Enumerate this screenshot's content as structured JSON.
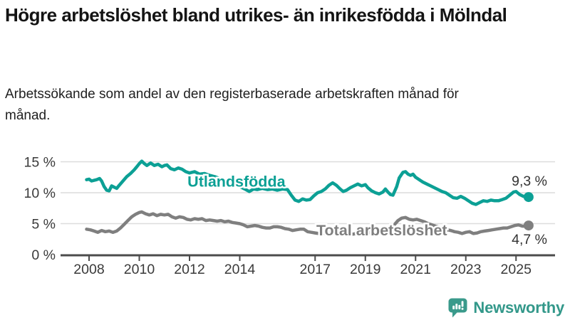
{
  "header": {
    "title": "Högre arbetslöshet bland utrikes- än inrikesfödda i Mölndal",
    "subtitle": "Arbetssökande som andel av den registerbaserade arbetskraften månad för månad."
  },
  "branding": {
    "name": "Newsworthy",
    "icon": "speech-bubble-bar-chart-icon",
    "color": "#3a9a8b"
  },
  "chart_data": {
    "type": "line",
    "title": "Högre arbetslöshet bland utrikes- än inrikesfödda i Mölndal",
    "xlabel": "",
    "ylabel": "",
    "grid": "horizontal-only",
    "xlim": [
      2007.8,
      2025.7
    ],
    "ylim": [
      0,
      16.5
    ],
    "colors": {
      "gridline": "#dcdcdc",
      "axis": "#4b4b4b",
      "tick_label": "#3a3a3a",
      "value_label": "#333333"
    },
    "y_ticks": [
      {
        "value": 0,
        "label": "0 %"
      },
      {
        "value": 5,
        "label": "5 %"
      },
      {
        "value": 10,
        "label": "10 %"
      },
      {
        "value": 15,
        "label": "15 %"
      }
    ],
    "x_ticks": [
      {
        "value": 2008,
        "label": "2008"
      },
      {
        "value": 2010,
        "label": "2010"
      },
      {
        "value": 2012,
        "label": "2012"
      },
      {
        "value": 2014,
        "label": "2014"
      },
      {
        "value": 2017,
        "label": "2017"
      },
      {
        "value": 2019,
        "label": "2019"
      },
      {
        "value": 2021,
        "label": "2021"
      },
      {
        "value": 2023,
        "label": "2023"
      },
      {
        "value": 2025,
        "label": "2025"
      }
    ],
    "series": [
      {
        "name": "Utlandsfödda",
        "id": "utlandsfodda",
        "color": "#0ca095",
        "end_value": 9.3,
        "end_label": "9,3 %",
        "end_label_position": "above",
        "inline_label": {
          "text": "Utlandsfödda",
          "anchor_year": 2011.92,
          "anchor_pct": 11.8
        },
        "points": [
          [
            2007.9,
            12.1
          ],
          [
            2008.0,
            12.2
          ],
          [
            2008.1,
            11.9
          ],
          [
            2008.2,
            12.0
          ],
          [
            2008.3,
            12.1
          ],
          [
            2008.42,
            12.3
          ],
          [
            2008.5,
            11.9
          ],
          [
            2008.6,
            11.0
          ],
          [
            2008.7,
            10.4
          ],
          [
            2008.8,
            10.3
          ],
          [
            2008.9,
            11.1
          ],
          [
            2009.0,
            10.9
          ],
          [
            2009.1,
            10.7
          ],
          [
            2009.2,
            11.2
          ],
          [
            2009.35,
            11.9
          ],
          [
            2009.5,
            12.6
          ],
          [
            2009.65,
            13.1
          ],
          [
            2009.8,
            13.7
          ],
          [
            2009.9,
            14.2
          ],
          [
            2010.0,
            14.7
          ],
          [
            2010.1,
            15.1
          ],
          [
            2010.2,
            14.7
          ],
          [
            2010.3,
            14.4
          ],
          [
            2010.45,
            14.8
          ],
          [
            2010.6,
            14.4
          ],
          [
            2010.75,
            14.6
          ],
          [
            2010.9,
            14.2
          ],
          [
            2011.0,
            14.4
          ],
          [
            2011.1,
            14.5
          ],
          [
            2011.25,
            13.9
          ],
          [
            2011.4,
            13.7
          ],
          [
            2011.55,
            14.0
          ],
          [
            2011.7,
            13.8
          ],
          [
            2011.85,
            13.4
          ],
          [
            2012.0,
            13.2
          ],
          [
            2012.2,
            13.4
          ],
          [
            2012.4,
            13.0
          ],
          [
            2012.6,
            13.1
          ],
          [
            2012.8,
            12.8
          ],
          [
            2013.0,
            12.6
          ],
          [
            2013.25,
            12.2
          ],
          [
            2013.5,
            11.8
          ],
          [
            2013.75,
            11.3
          ],
          [
            2014.0,
            11.0
          ],
          [
            2014.2,
            10.6
          ],
          [
            2014.38,
            10.2
          ],
          [
            2014.55,
            10.6
          ],
          [
            2014.7,
            10.5
          ],
          [
            2014.9,
            10.7
          ],
          [
            2015.1,
            10.5
          ],
          [
            2015.3,
            10.6
          ],
          [
            2015.5,
            10.4
          ],
          [
            2015.7,
            10.6
          ],
          [
            2015.9,
            10.5
          ],
          [
            2016.05,
            9.6
          ],
          [
            2016.2,
            8.8
          ],
          [
            2016.35,
            8.6
          ],
          [
            2016.5,
            9.0
          ],
          [
            2016.65,
            8.8
          ],
          [
            2016.8,
            8.9
          ],
          [
            2016.95,
            9.5
          ],
          [
            2017.1,
            10.0
          ],
          [
            2017.25,
            10.2
          ],
          [
            2017.4,
            10.6
          ],
          [
            2017.55,
            11.2
          ],
          [
            2017.7,
            11.6
          ],
          [
            2017.85,
            11.2
          ],
          [
            2018.0,
            10.6
          ],
          [
            2018.12,
            10.2
          ],
          [
            2018.25,
            10.4
          ],
          [
            2018.4,
            10.8
          ],
          [
            2018.55,
            11.1
          ],
          [
            2018.7,
            11.4
          ],
          [
            2018.85,
            11.1
          ],
          [
            2019.0,
            11.3
          ],
          [
            2019.1,
            10.8
          ],
          [
            2019.25,
            10.3
          ],
          [
            2019.4,
            10.0
          ],
          [
            2019.55,
            9.8
          ],
          [
            2019.7,
            10.1
          ],
          [
            2019.8,
            10.6
          ],
          [
            2019.9,
            10.1
          ],
          [
            2020.0,
            9.7
          ],
          [
            2020.1,
            9.6
          ],
          [
            2020.25,
            11.0
          ],
          [
            2020.35,
            12.4
          ],
          [
            2020.5,
            13.3
          ],
          [
            2020.6,
            13.4
          ],
          [
            2020.7,
            13.0
          ],
          [
            2020.8,
            12.8
          ],
          [
            2020.9,
            13.0
          ],
          [
            2021.0,
            12.5
          ],
          [
            2021.15,
            12.1
          ],
          [
            2021.3,
            11.7
          ],
          [
            2021.45,
            11.4
          ],
          [
            2021.6,
            11.1
          ],
          [
            2021.75,
            10.8
          ],
          [
            2021.9,
            10.5
          ],
          [
            2022.05,
            10.2
          ],
          [
            2022.2,
            10.0
          ],
          [
            2022.35,
            9.6
          ],
          [
            2022.5,
            9.2
          ],
          [
            2022.65,
            9.1
          ],
          [
            2022.8,
            9.4
          ],
          [
            2022.95,
            9.1
          ],
          [
            2023.1,
            8.7
          ],
          [
            2023.25,
            8.3
          ],
          [
            2023.4,
            8.1
          ],
          [
            2023.55,
            8.4
          ],
          [
            2023.7,
            8.7
          ],
          [
            2023.85,
            8.6
          ],
          [
            2024.0,
            8.8
          ],
          [
            2024.15,
            8.7
          ],
          [
            2024.3,
            8.7
          ],
          [
            2024.45,
            8.9
          ],
          [
            2024.6,
            9.1
          ],
          [
            2024.75,
            9.6
          ],
          [
            2024.9,
            10.1
          ],
          [
            2025.0,
            10.2
          ],
          [
            2025.15,
            9.7
          ],
          [
            2025.3,
            9.4
          ],
          [
            2025.4,
            9.5
          ],
          [
            2025.5,
            9.3
          ]
        ]
      },
      {
        "name": "Total arbetslöshet",
        "id": "total",
        "color": "#7f7f7f",
        "end_value": 4.7,
        "end_label": "4,7 %",
        "end_label_position": "below",
        "inline_label": {
          "text": "Total arbetslöshet",
          "anchor_year": 2017.05,
          "anchor_pct": 3.9
        },
        "points": [
          [
            2007.9,
            4.1
          ],
          [
            2008.05,
            4.0
          ],
          [
            2008.2,
            3.8
          ],
          [
            2008.35,
            3.6
          ],
          [
            2008.5,
            3.9
          ],
          [
            2008.65,
            3.7
          ],
          [
            2008.8,
            3.8
          ],
          [
            2008.95,
            3.6
          ],
          [
            2009.1,
            3.8
          ],
          [
            2009.25,
            4.3
          ],
          [
            2009.4,
            4.9
          ],
          [
            2009.55,
            5.5
          ],
          [
            2009.7,
            6.1
          ],
          [
            2009.85,
            6.5
          ],
          [
            2010.0,
            6.8
          ],
          [
            2010.1,
            6.9
          ],
          [
            2010.25,
            6.6
          ],
          [
            2010.4,
            6.4
          ],
          [
            2010.55,
            6.6
          ],
          [
            2010.7,
            6.3
          ],
          [
            2010.85,
            6.5
          ],
          [
            2011.0,
            6.4
          ],
          [
            2011.15,
            6.5
          ],
          [
            2011.3,
            6.1
          ],
          [
            2011.45,
            5.9
          ],
          [
            2011.6,
            6.1
          ],
          [
            2011.75,
            6.0
          ],
          [
            2011.9,
            5.7
          ],
          [
            2012.05,
            5.6
          ],
          [
            2012.2,
            5.8
          ],
          [
            2012.35,
            5.7
          ],
          [
            2012.5,
            5.8
          ],
          [
            2012.65,
            5.5
          ],
          [
            2012.8,
            5.6
          ],
          [
            2012.95,
            5.5
          ],
          [
            2013.1,
            5.4
          ],
          [
            2013.25,
            5.5
          ],
          [
            2013.4,
            5.3
          ],
          [
            2013.55,
            5.4
          ],
          [
            2013.7,
            5.2
          ],
          [
            2013.85,
            5.1
          ],
          [
            2014.0,
            5.0
          ],
          [
            2014.15,
            4.8
          ],
          [
            2014.3,
            4.5
          ],
          [
            2014.45,
            4.6
          ],
          [
            2014.6,
            4.7
          ],
          [
            2014.75,
            4.6
          ],
          [
            2014.9,
            4.4
          ],
          [
            2015.05,
            4.3
          ],
          [
            2015.2,
            4.3
          ],
          [
            2015.35,
            4.5
          ],
          [
            2015.5,
            4.5
          ],
          [
            2015.65,
            4.4
          ],
          [
            2015.8,
            4.2
          ],
          [
            2015.95,
            4.1
          ],
          [
            2016.1,
            3.9
          ],
          [
            2016.25,
            4.0
          ],
          [
            2016.4,
            4.1
          ],
          [
            2016.55,
            4.1
          ],
          [
            2016.7,
            3.7
          ],
          [
            2016.85,
            3.6
          ],
          [
            2017.0,
            3.5
          ],
          [
            2017.15,
            3.4
          ],
          [
            2017.3,
            3.5
          ],
          [
            2017.45,
            3.4
          ],
          [
            2017.6,
            3.5
          ],
          [
            2017.75,
            3.4
          ],
          [
            2017.9,
            3.3
          ],
          [
            2018.05,
            3.4
          ],
          [
            2018.2,
            3.3
          ],
          [
            2018.35,
            3.4
          ],
          [
            2018.5,
            3.3
          ],
          [
            2018.65,
            3.4
          ],
          [
            2018.8,
            3.3
          ],
          [
            2018.95,
            3.4
          ],
          [
            2019.1,
            3.5
          ],
          [
            2019.25,
            3.6
          ],
          [
            2019.4,
            3.7
          ],
          [
            2019.55,
            3.8
          ],
          [
            2019.7,
            3.9
          ],
          [
            2019.85,
            4.0
          ],
          [
            2020.0,
            4.2
          ],
          [
            2020.15,
            4.8
          ],
          [
            2020.3,
            5.5
          ],
          [
            2020.45,
            5.9
          ],
          [
            2020.6,
            6.0
          ],
          [
            2020.75,
            5.7
          ],
          [
            2020.9,
            5.6
          ],
          [
            2021.05,
            5.7
          ],
          [
            2021.2,
            5.5
          ],
          [
            2021.35,
            5.3
          ],
          [
            2021.5,
            5.0
          ],
          [
            2021.65,
            4.8
          ],
          [
            2021.8,
            4.6
          ],
          [
            2021.95,
            4.4
          ],
          [
            2022.1,
            4.2
          ],
          [
            2022.25,
            4.0
          ],
          [
            2022.4,
            3.9
          ],
          [
            2022.55,
            3.7
          ],
          [
            2022.7,
            3.6
          ],
          [
            2022.85,
            3.4
          ],
          [
            2023.0,
            3.6
          ],
          [
            2023.15,
            3.7
          ],
          [
            2023.3,
            3.4
          ],
          [
            2023.45,
            3.5
          ],
          [
            2023.6,
            3.7
          ],
          [
            2023.75,
            3.8
          ],
          [
            2023.9,
            3.9
          ],
          [
            2024.05,
            4.0
          ],
          [
            2024.2,
            4.1
          ],
          [
            2024.35,
            4.2
          ],
          [
            2024.5,
            4.3
          ],
          [
            2024.65,
            4.3
          ],
          [
            2024.8,
            4.5
          ],
          [
            2024.95,
            4.7
          ],
          [
            2025.1,
            4.8
          ],
          [
            2025.25,
            4.6
          ],
          [
            2025.4,
            4.6
          ],
          [
            2025.5,
            4.7
          ]
        ]
      }
    ]
  }
}
